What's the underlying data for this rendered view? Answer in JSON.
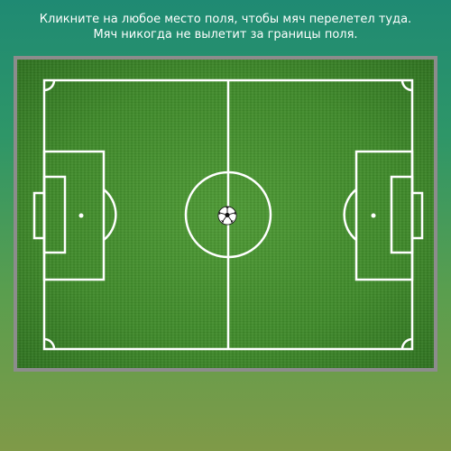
{
  "instructions": {
    "line1": "Кликните на любое место поля, чтобы мяч перелетел туда.",
    "line2": "Мяч никогда не вылетит за границы поля."
  },
  "colors": {
    "grass": "#3f8a2a",
    "lines": "#ffffff",
    "frame": "#8c8c8c"
  },
  "icons": {
    "ball": "soccer-ball-icon"
  }
}
